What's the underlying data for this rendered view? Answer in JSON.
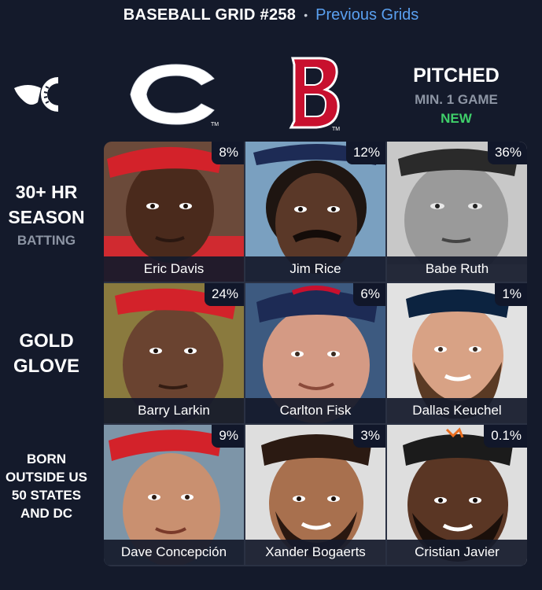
{
  "header": {
    "title": "BASEBALL GRID #258",
    "separator": "•",
    "previous_link": "Previous Grids"
  },
  "columns": [
    {
      "type": "team",
      "icon": "reds-logo-icon",
      "color": "#c6011f"
    },
    {
      "type": "team",
      "icon": "red-sox-logo-icon",
      "color": "#bd3039"
    },
    {
      "type": "stat",
      "title": "PITCHED",
      "subtitle": "MIN. 1 GAME",
      "badge": "NEW",
      "badge_color": "#3fcf6a"
    }
  ],
  "rows": [
    {
      "title": "30+ HR SEASON",
      "subtitle": "BATTING"
    },
    {
      "title": "GOLD GLOVE"
    },
    {
      "title": "BORN OUTSIDE US 50 STATES AND DC"
    }
  ],
  "cells": [
    [
      {
        "player": "Eric Davis",
        "percent": "8%"
      },
      {
        "player": "Jim Rice",
        "percent": "12%"
      },
      {
        "player": "Babe Ruth",
        "percent": "36%"
      }
    ],
    [
      {
        "player": "Barry Larkin",
        "percent": "24%"
      },
      {
        "player": "Carlton Fisk",
        "percent": "6%"
      },
      {
        "player": "Dallas Keuchel",
        "percent": "1%"
      }
    ],
    [
      {
        "player": "Dave Concepción",
        "percent": "9%"
      },
      {
        "player": "Xander Bogaerts",
        "percent": "3%"
      },
      {
        "player": "Cristian Javier",
        "percent": "0.1%"
      }
    ]
  ]
}
